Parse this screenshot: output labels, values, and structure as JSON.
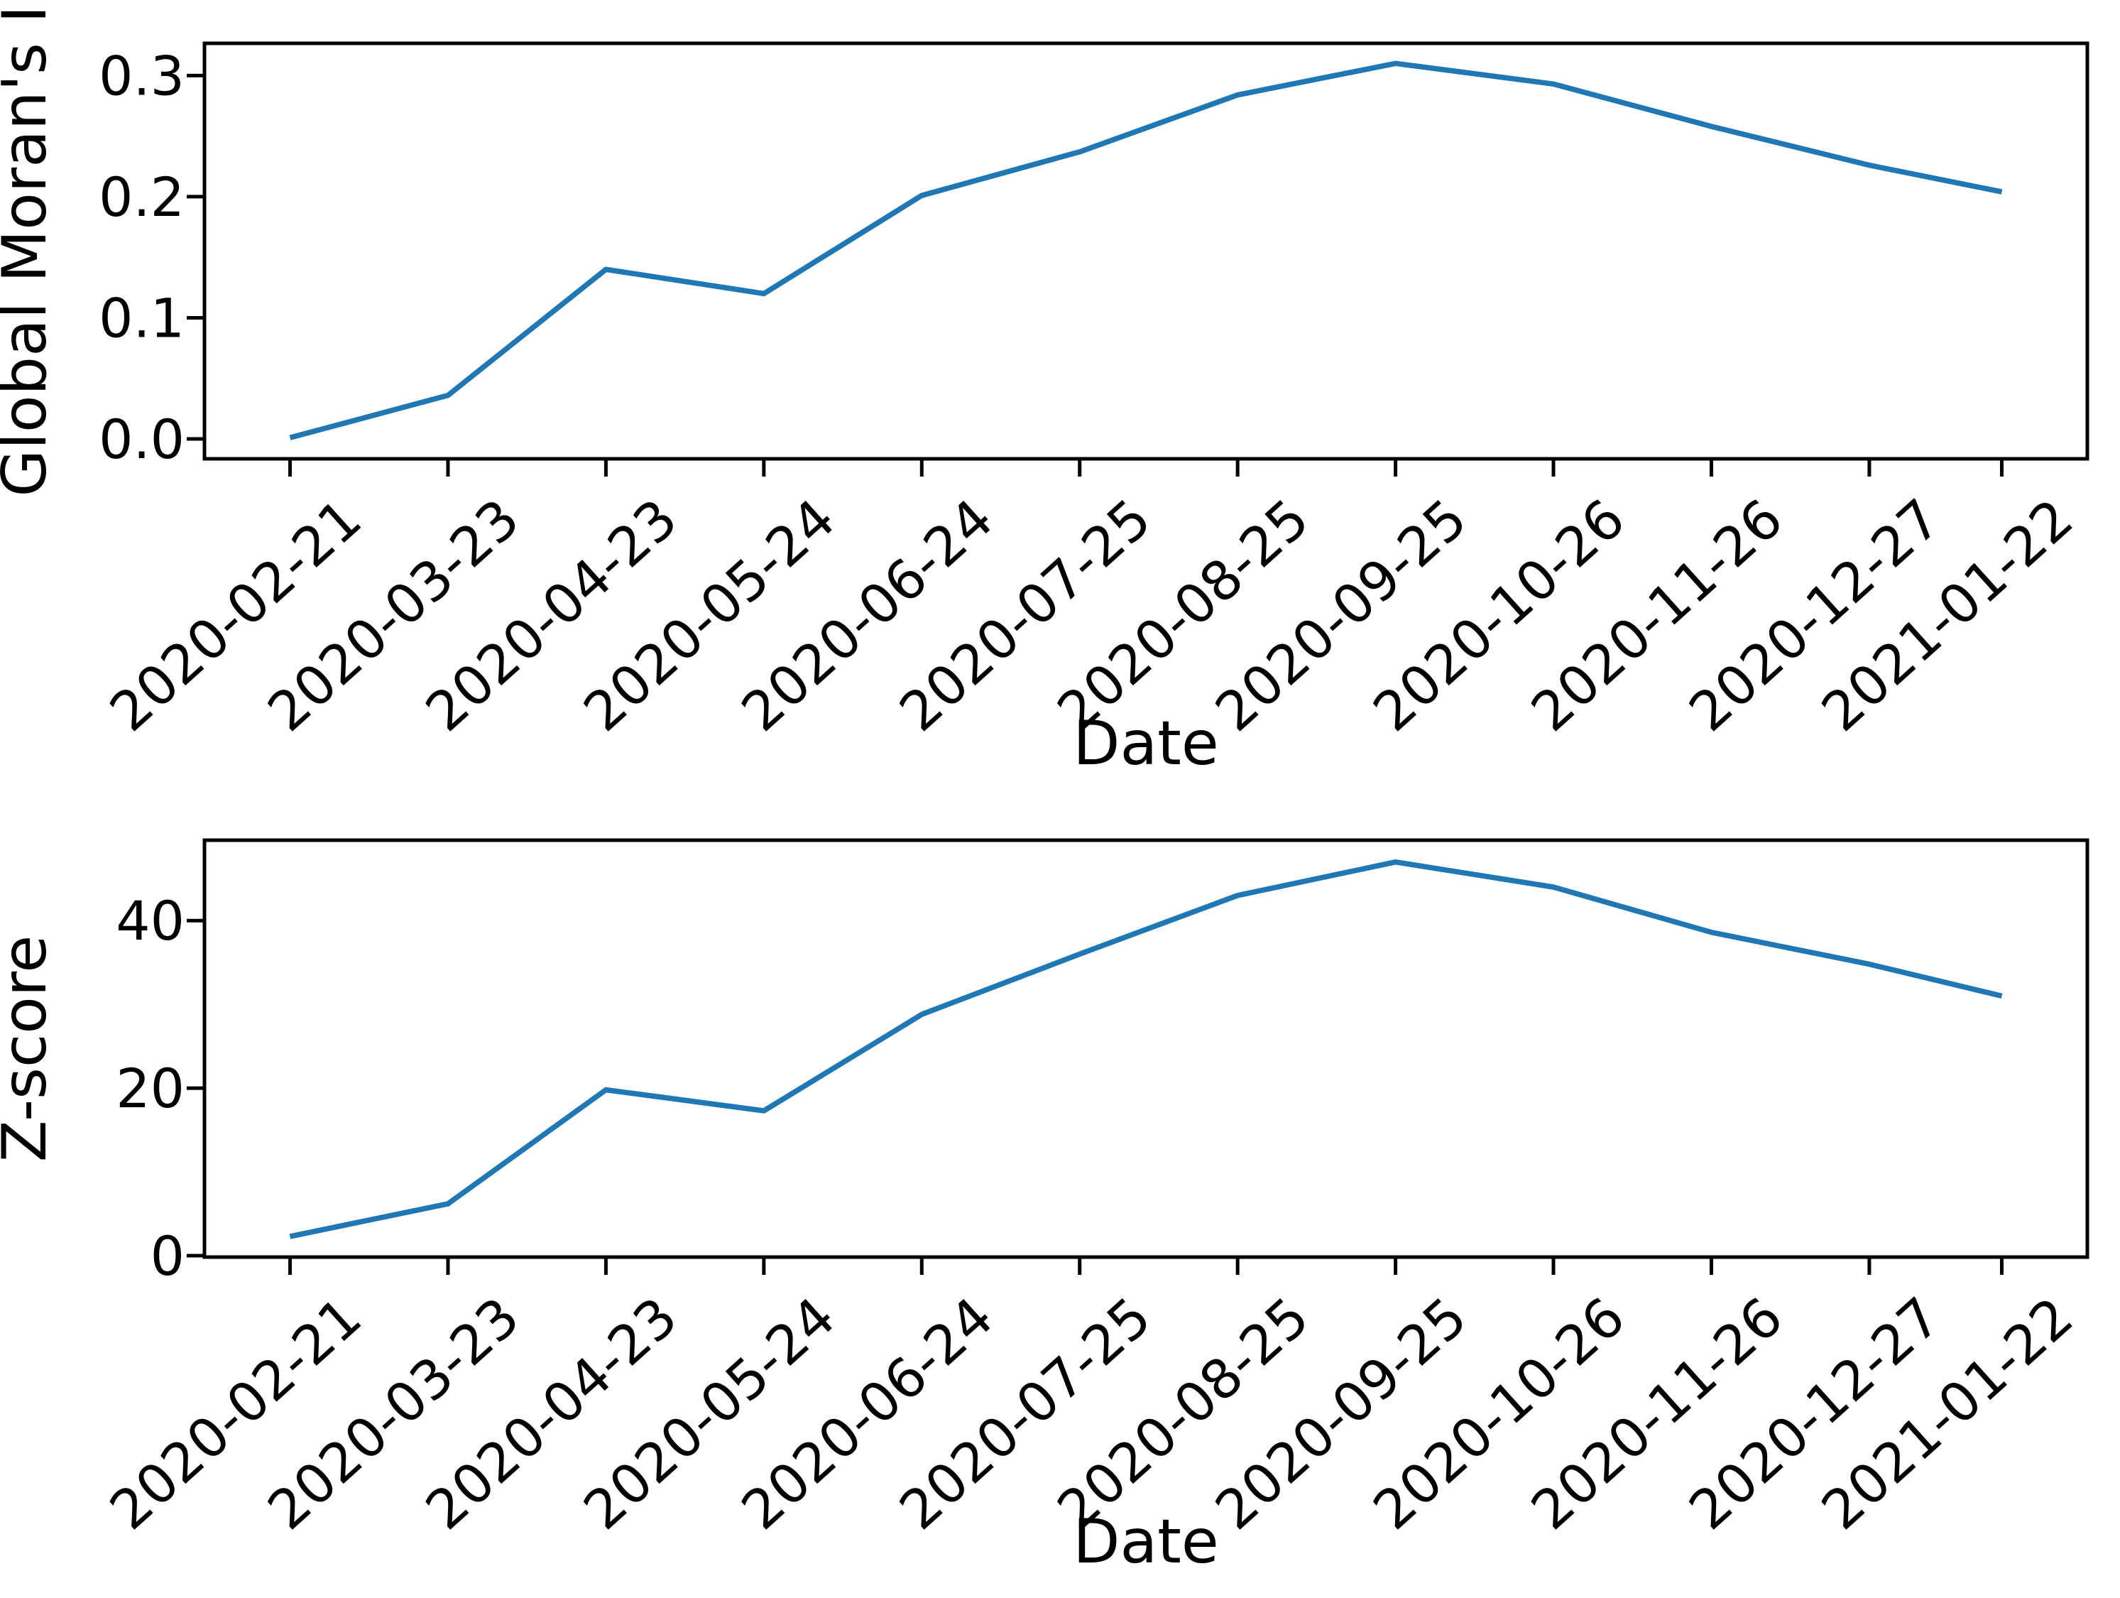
{
  "figure": {
    "background": "#ffffff",
    "axis_color": "#000000",
    "line_color": "#1f77b4"
  },
  "chart_data": [
    {
      "type": "line",
      "title": "",
      "xlabel": "Date",
      "ylabel": "Global Moran's I",
      "categories": [
        "2020-02-21",
        "2020-03-23",
        "2020-04-23",
        "2020-05-24",
        "2020-06-24",
        "2020-07-25",
        "2020-08-25",
        "2020-09-25",
        "2020-10-26",
        "2020-11-26",
        "2020-12-27",
        "2021-01-22"
      ],
      "values": [
        0.001,
        0.036,
        0.14,
        0.12,
        0.201,
        0.237,
        0.284,
        0.31,
        0.293,
        0.258,
        0.226,
        0.204
      ],
      "yticks": [
        0.0,
        0.1,
        0.2,
        0.3
      ],
      "ytick_labels": [
        "0.0",
        "0.1",
        "0.2",
        "0.3"
      ],
      "ylim": [
        -0.0164,
        0.3266
      ],
      "x_margin_fraction": 0.05,
      "grid": false,
      "legend": false,
      "line_color": "#1f77b4"
    },
    {
      "type": "line",
      "title": "",
      "xlabel": "Date",
      "ylabel": "Z-score",
      "categories": [
        "2020-02-21",
        "2020-03-23",
        "2020-04-23",
        "2020-05-24",
        "2020-06-24",
        "2020-07-25",
        "2020-08-25",
        "2020-09-25",
        "2020-10-26",
        "2020-11-26",
        "2020-12-27",
        "2021-01-22"
      ],
      "values": [
        2.3,
        6.2,
        19.8,
        17.3,
        28.8,
        36.0,
        43.0,
        47.0,
        44.0,
        38.6,
        34.8,
        31.0
      ],
      "yticks": [
        0,
        20,
        40
      ],
      "ytick_labels": [
        "0",
        "20",
        "40"
      ],
      "ylim": [
        -0.17,
        49.6
      ],
      "x_margin_fraction": 0.05,
      "grid": false,
      "legend": false,
      "line_color": "#1f77b4"
    }
  ]
}
